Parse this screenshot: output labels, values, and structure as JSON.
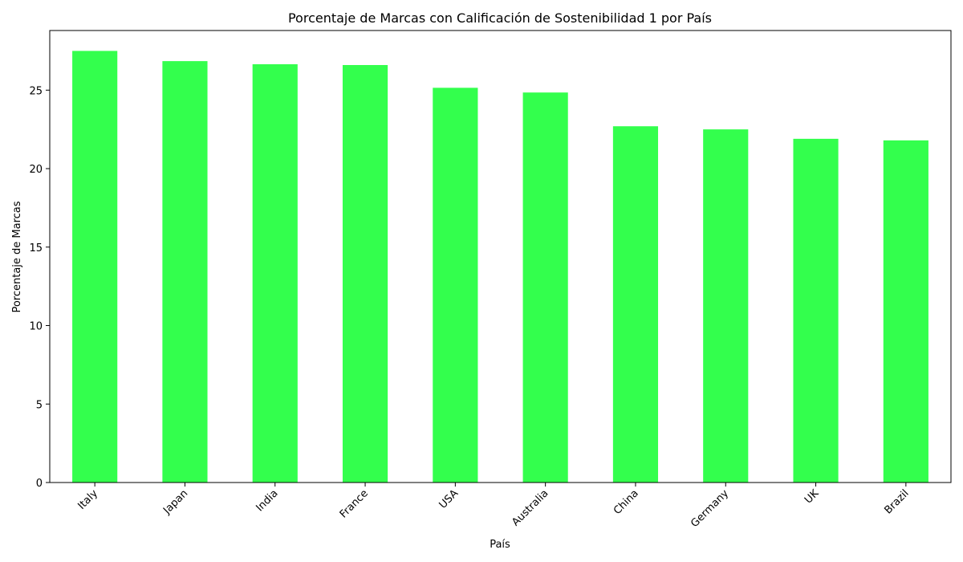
{
  "chart_data": {
    "type": "bar",
    "title": "Porcentaje de Marcas con Calificación de Sostenibilidad 1 por País",
    "xlabel": "País",
    "ylabel": "Porcentaje de Marcas",
    "categories": [
      "Italy",
      "Japan",
      "India",
      "France",
      "USA",
      "Australia",
      "China",
      "Germany",
      "UK",
      "Brazil"
    ],
    "values": [
      27.5,
      26.85,
      26.65,
      26.6,
      25.15,
      24.85,
      22.7,
      22.5,
      21.9,
      21.8
    ],
    "ylim": [
      0,
      28.8
    ],
    "yticks": [
      0,
      5,
      10,
      15,
      20,
      25
    ],
    "bar_color": "#33ff4d",
    "grid": false,
    "legend": "none"
  }
}
